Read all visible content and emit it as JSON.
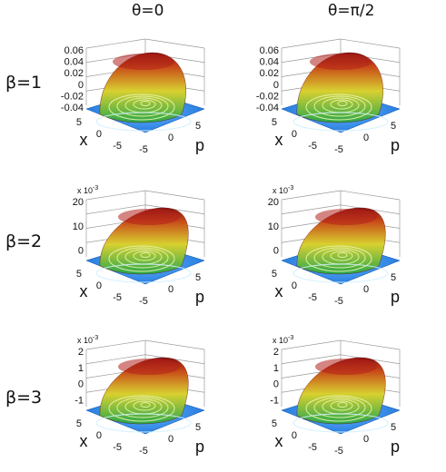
{
  "columns": [
    {
      "label": "θ=0"
    },
    {
      "label": "θ=π/2"
    }
  ],
  "rows": [
    {
      "label": "β=1",
      "scale": "",
      "zticks": [
        "0.06",
        "0.04",
        "0.02",
        "0",
        "-0.02",
        "-0.04"
      ],
      "xticks": [
        "5",
        "0",
        "-5"
      ],
      "pticks": [
        "-5",
        "0",
        "5"
      ],
      "xlabel": "x",
      "plabel": "p"
    },
    {
      "label": "β=2",
      "scale": "x 10",
      "scale_exp": "-3",
      "zticks": [
        "20",
        "10",
        "0"
      ],
      "xticks": [
        "5",
        "0",
        "-5"
      ],
      "pticks": [
        "-5",
        "0",
        "5"
      ],
      "xlabel": "x",
      "plabel": "p"
    },
    {
      "label": "β=3",
      "scale": "x 10",
      "scale_exp": "-3",
      "zticks": [
        "2",
        "1",
        "0",
        "-1"
      ],
      "xticks": [
        "5",
        "0",
        "-5"
      ],
      "pticks": [
        "-5",
        "0",
        "5"
      ],
      "xlabel": "x",
      "plabel": "p"
    }
  ],
  "colors": {
    "floor": "#1e73d8",
    "floor_edge": "#5fb2ff",
    "surface_low": "#2aa84a",
    "surface_mid": "#d8d030",
    "surface_high": "#8a1010",
    "contour": "#e9f6b0",
    "box": "#9a9a9a"
  }
}
